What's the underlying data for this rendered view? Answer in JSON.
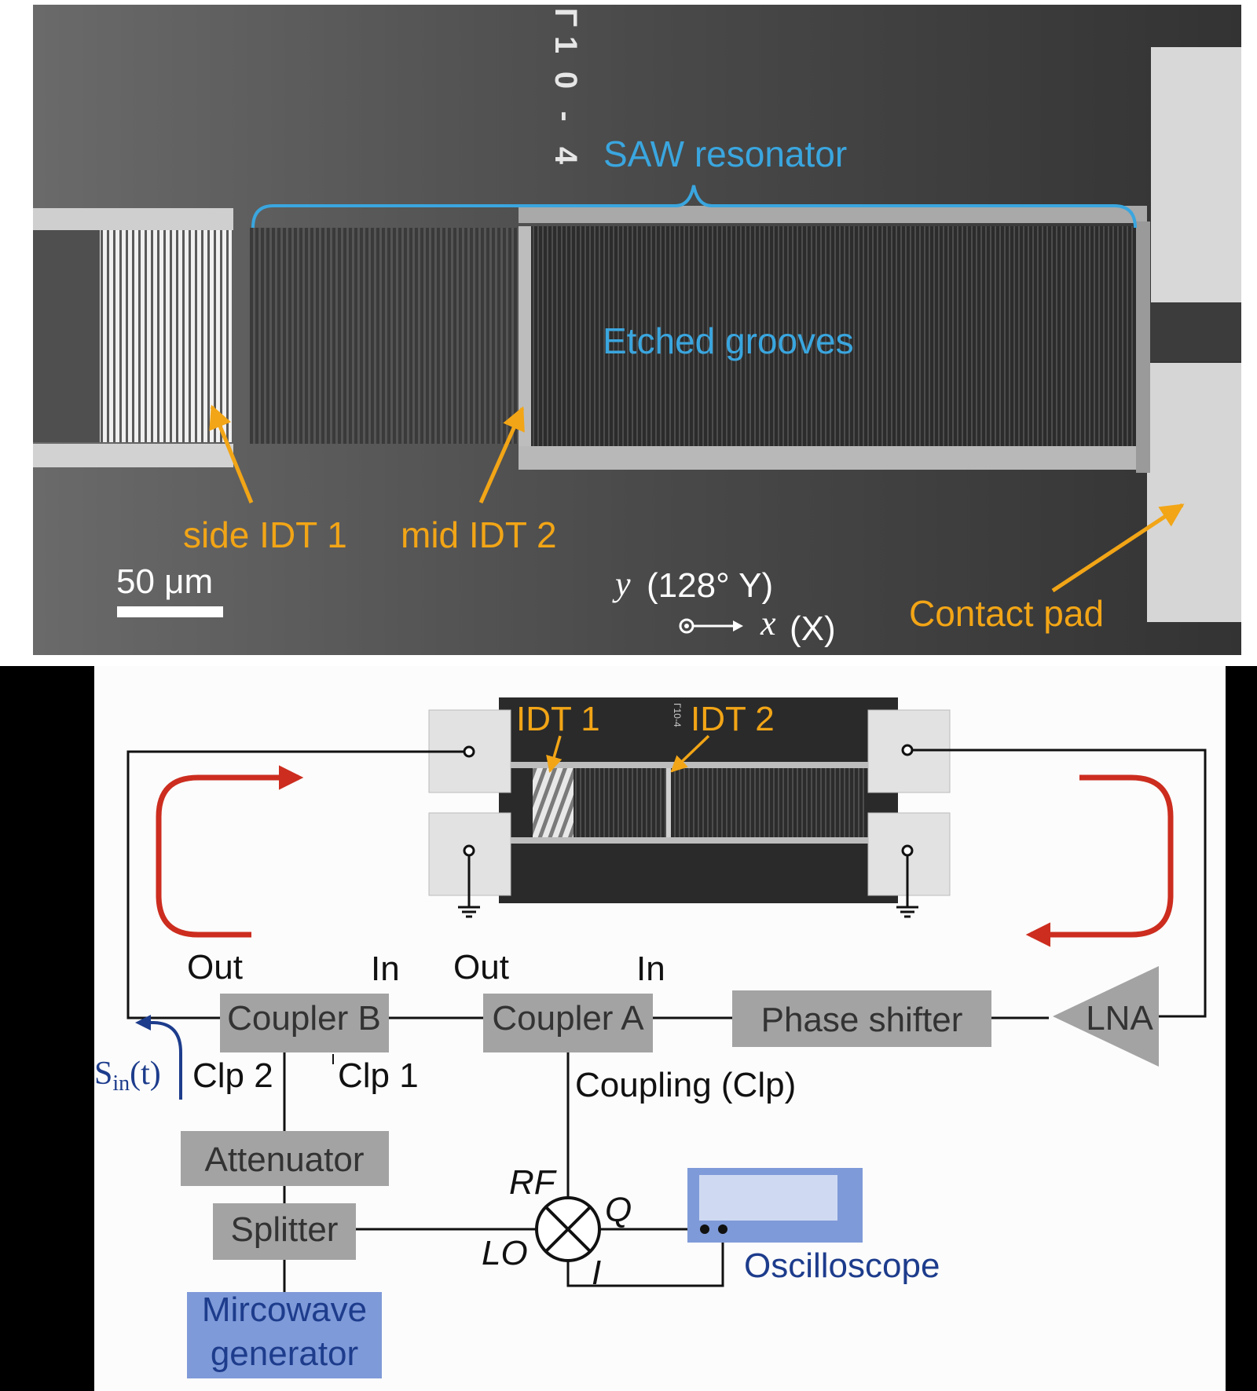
{
  "colors": {
    "orange": "#f2a516",
    "cyan": "#3aa6df",
    "red": "#cc2d1f",
    "navy": "#1d3c8c",
    "box_gray": "#a3a3a3",
    "box_blue": "#7f9ad8",
    "wire": "#111111"
  },
  "sem": {
    "chip_label_chars": [
      "Γ",
      "1",
      "0",
      "-",
      "4"
    ],
    "saw_resonator": "SAW resonator",
    "etched_grooves": "Etched grooves",
    "side_idt": "side IDT 1",
    "mid_idt": "mid IDT 2",
    "scale_bar": "50 μm",
    "axis_y_var": "y",
    "axis_y_desc": "(128° Y)",
    "axis_x_var": "x",
    "axis_x_desc": "(X)",
    "contact_pad": "Contact pad"
  },
  "circuit": {
    "idt1": "IDT 1",
    "idt2": "IDT 2",
    "coupler_b": "Coupler B",
    "coupler_a": "Coupler A",
    "phase_shifter": "Phase shifter",
    "lna": "LNA",
    "out_b": "Out",
    "in_b": "In",
    "out_a": "Out",
    "in_a": "In",
    "clp2": "Clp 2",
    "clp1": "Clp 1",
    "coupling": "Coupling (Clp)",
    "sin_main": "S",
    "sin_sub": "in",
    "sin_arg": "(t)",
    "attenuator": "Attenuator",
    "splitter": "Splitter",
    "generator_line1": "Mircowave",
    "generator_line2": "generator",
    "mixer_rf": "RF",
    "mixer_lo": "LO",
    "mixer_q": "Q",
    "mixer_i": "I",
    "oscilloscope": "Oscilloscope"
  }
}
